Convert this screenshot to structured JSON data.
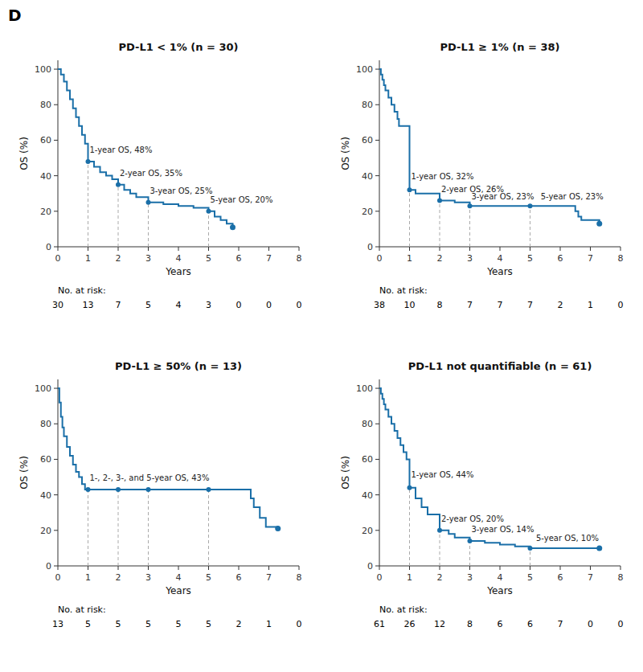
{
  "panel_label": "D",
  "chart_data": [
    {
      "type": "step",
      "title": "PD-L1 < 1% (n = 30)",
      "x_label": "Years",
      "y_label": "OS (%)",
      "color": "#1a6fa8",
      "x": [
        0,
        0.1,
        0.2,
        0.3,
        0.4,
        0.5,
        0.6,
        0.7,
        0.8,
        0.9,
        1.0,
        1.2,
        1.4,
        1.6,
        1.8,
        2.0,
        2.2,
        2.4,
        2.6,
        3.0,
        3.5,
        4.0,
        4.5,
        5.0,
        5.2,
        5.4,
        5.6,
        5.8
      ],
      "values": [
        100,
        97,
        93,
        88,
        83,
        78,
        73,
        68,
        63,
        58,
        48,
        45,
        42,
        40,
        38,
        35,
        32,
        30,
        28,
        25,
        24,
        23,
        22,
        20,
        17,
        15,
        13,
        11
      ],
      "censors": {
        "x": [
          5.8
        ],
        "values": [
          11
        ]
      },
      "milestones": {
        "x": [
          1,
          2,
          3,
          5
        ],
        "values": [
          48,
          35,
          25,
          20
        ]
      },
      "annotations": [
        {
          "x": 1.05,
          "y": 52,
          "text": "1-year OS, 48%"
        },
        {
          "x": 2.05,
          "y": 39,
          "text": "2-year OS, 35%"
        },
        {
          "x": 3.05,
          "y": 29,
          "text": "3-year OS, 25%"
        },
        {
          "x": 5.05,
          "y": 24,
          "text": "5-year OS, 20%"
        }
      ],
      "at_risk": {
        "label": "No. at risk:",
        "values": [
          30,
          13,
          7,
          5,
          4,
          3,
          0,
          0,
          0
        ]
      },
      "xlim": [
        0,
        8
      ],
      "ylim": [
        0,
        105
      ],
      "xticks": [
        0,
        1,
        2,
        3,
        4,
        5,
        6,
        7,
        8
      ],
      "yticks": [
        0,
        20,
        40,
        60,
        80,
        100
      ]
    },
    {
      "type": "step",
      "title": "PD-L1 ≥ 1% (n = 38)",
      "x_label": "Years",
      "y_label": "OS (%)",
      "color": "#1a6fa8",
      "x": [
        0,
        0.05,
        0.1,
        0.15,
        0.2,
        0.3,
        0.4,
        0.5,
        0.6,
        0.65,
        1.0,
        1.2,
        2.0,
        2.5,
        3.0,
        4.0,
        5.0,
        5.1,
        5.2,
        6.4,
        6.5,
        6.6,
        6.7,
        7.3
      ],
      "values": [
        100,
        97,
        94,
        91,
        88,
        84,
        80,
        76,
        72,
        68,
        32,
        30,
        26,
        25,
        23,
        23,
        23,
        23,
        23,
        23,
        20,
        17,
        15,
        13
      ],
      "censors": {
        "x": [
          7.3
        ],
        "values": [
          13
        ]
      },
      "milestones": {
        "x": [
          1,
          2,
          3,
          5
        ],
        "values": [
          32,
          26,
          23,
          23
        ]
      },
      "annotations": [
        {
          "x": 1.05,
          "y": 37,
          "text": "1-year OS, 32%"
        },
        {
          "x": 2.05,
          "y": 30,
          "text": "2-year OS, 26%"
        },
        {
          "x": 3.05,
          "y": 26,
          "text": "3-year OS, 23%"
        },
        {
          "x": 5.35,
          "y": 26,
          "text": "5-year OS, 23%"
        }
      ],
      "at_risk": {
        "label": "No. at risk:",
        "values": [
          38,
          10,
          8,
          7,
          7,
          7,
          2,
          1,
          0
        ]
      },
      "xlim": [
        0,
        8
      ],
      "ylim": [
        0,
        105
      ],
      "xticks": [
        0,
        1,
        2,
        3,
        4,
        5,
        6,
        7,
        8
      ],
      "yticks": [
        0,
        20,
        40,
        60,
        80,
        100
      ]
    },
    {
      "type": "step",
      "title": "PD-L1 ≥ 50% (n = 13)",
      "x_label": "Years",
      "y_label": "OS (%)",
      "color": "#1a6fa8",
      "x": [
        0,
        0.05,
        0.1,
        0.15,
        0.2,
        0.3,
        0.4,
        0.5,
        0.6,
        0.7,
        0.8,
        0.9,
        1.0,
        2.0,
        3.0,
        4.0,
        5.0,
        5.1,
        5.2,
        6.3,
        6.4,
        6.5,
        6.7,
        6.9,
        7.3
      ],
      "values": [
        100,
        92,
        84,
        78,
        73,
        67,
        62,
        57,
        53,
        50,
        46,
        43,
        43,
        43,
        43,
        43,
        43,
        43,
        43,
        43,
        38,
        33,
        27,
        22,
        21
      ],
      "censors": {
        "x": [
          7.3
        ],
        "values": [
          21
        ]
      },
      "milestones": {
        "x": [
          1,
          2,
          3,
          5
        ],
        "values": [
          43,
          43,
          43,
          43
        ]
      },
      "annotations": [
        {
          "x": 1.05,
          "y": 47,
          "text": "1-, 2-, 3-, and 5-year OS, 43%"
        }
      ],
      "at_risk": {
        "label": "No. at risk:",
        "values": [
          13,
          5,
          5,
          5,
          5,
          5,
          2,
          1,
          0
        ]
      },
      "xlim": [
        0,
        8
      ],
      "ylim": [
        0,
        105
      ],
      "xticks": [
        0,
        1,
        2,
        3,
        4,
        5,
        6,
        7,
        8
      ],
      "yticks": [
        0,
        20,
        40,
        60,
        80,
        100
      ]
    },
    {
      "type": "step",
      "title": "PD-L1 not quantifiable (n = 61)",
      "x_label": "Years",
      "y_label": "OS (%)",
      "color": "#1a6fa8",
      "x": [
        0,
        0.05,
        0.1,
        0.15,
        0.2,
        0.3,
        0.4,
        0.5,
        0.6,
        0.7,
        0.8,
        0.9,
        1.0,
        1.2,
        1.4,
        1.6,
        2.0,
        2.3,
        2.5,
        3.0,
        3.5,
        4.0,
        4.5,
        5.0,
        5.1,
        5.2,
        5.3,
        6.0,
        6.5,
        7.3
      ],
      "values": [
        100,
        97,
        94,
        91,
        88,
        84,
        80,
        76,
        72,
        68,
        64,
        60,
        44,
        38,
        33,
        29,
        20,
        18,
        16,
        14,
        13,
        12,
        11,
        10,
        10,
        10,
        10,
        10,
        10,
        10
      ],
      "censors": {
        "x": [
          7.3
        ],
        "values": [
          10
        ]
      },
      "milestones": {
        "x": [
          1,
          2,
          3,
          5
        ],
        "values": [
          44,
          20,
          14,
          10
        ]
      },
      "annotations": [
        {
          "x": 1.05,
          "y": 49,
          "text": "1-year OS, 44%"
        },
        {
          "x": 2.05,
          "y": 24,
          "text": "2-year OS, 20%"
        },
        {
          "x": 3.05,
          "y": 18,
          "text": "3-year OS, 14%"
        },
        {
          "x": 5.2,
          "y": 13,
          "text": "5-year OS, 10%"
        }
      ],
      "at_risk": {
        "label": "No. at risk:",
        "values": [
          61,
          26,
          12,
          8,
          6,
          6,
          7,
          0,
          0
        ]
      },
      "xlim": [
        0,
        8
      ],
      "ylim": [
        0,
        105
      ],
      "xticks": [
        0,
        1,
        2,
        3,
        4,
        5,
        6,
        7,
        8
      ],
      "yticks": [
        0,
        20,
        40,
        60,
        80,
        100
      ]
    }
  ]
}
